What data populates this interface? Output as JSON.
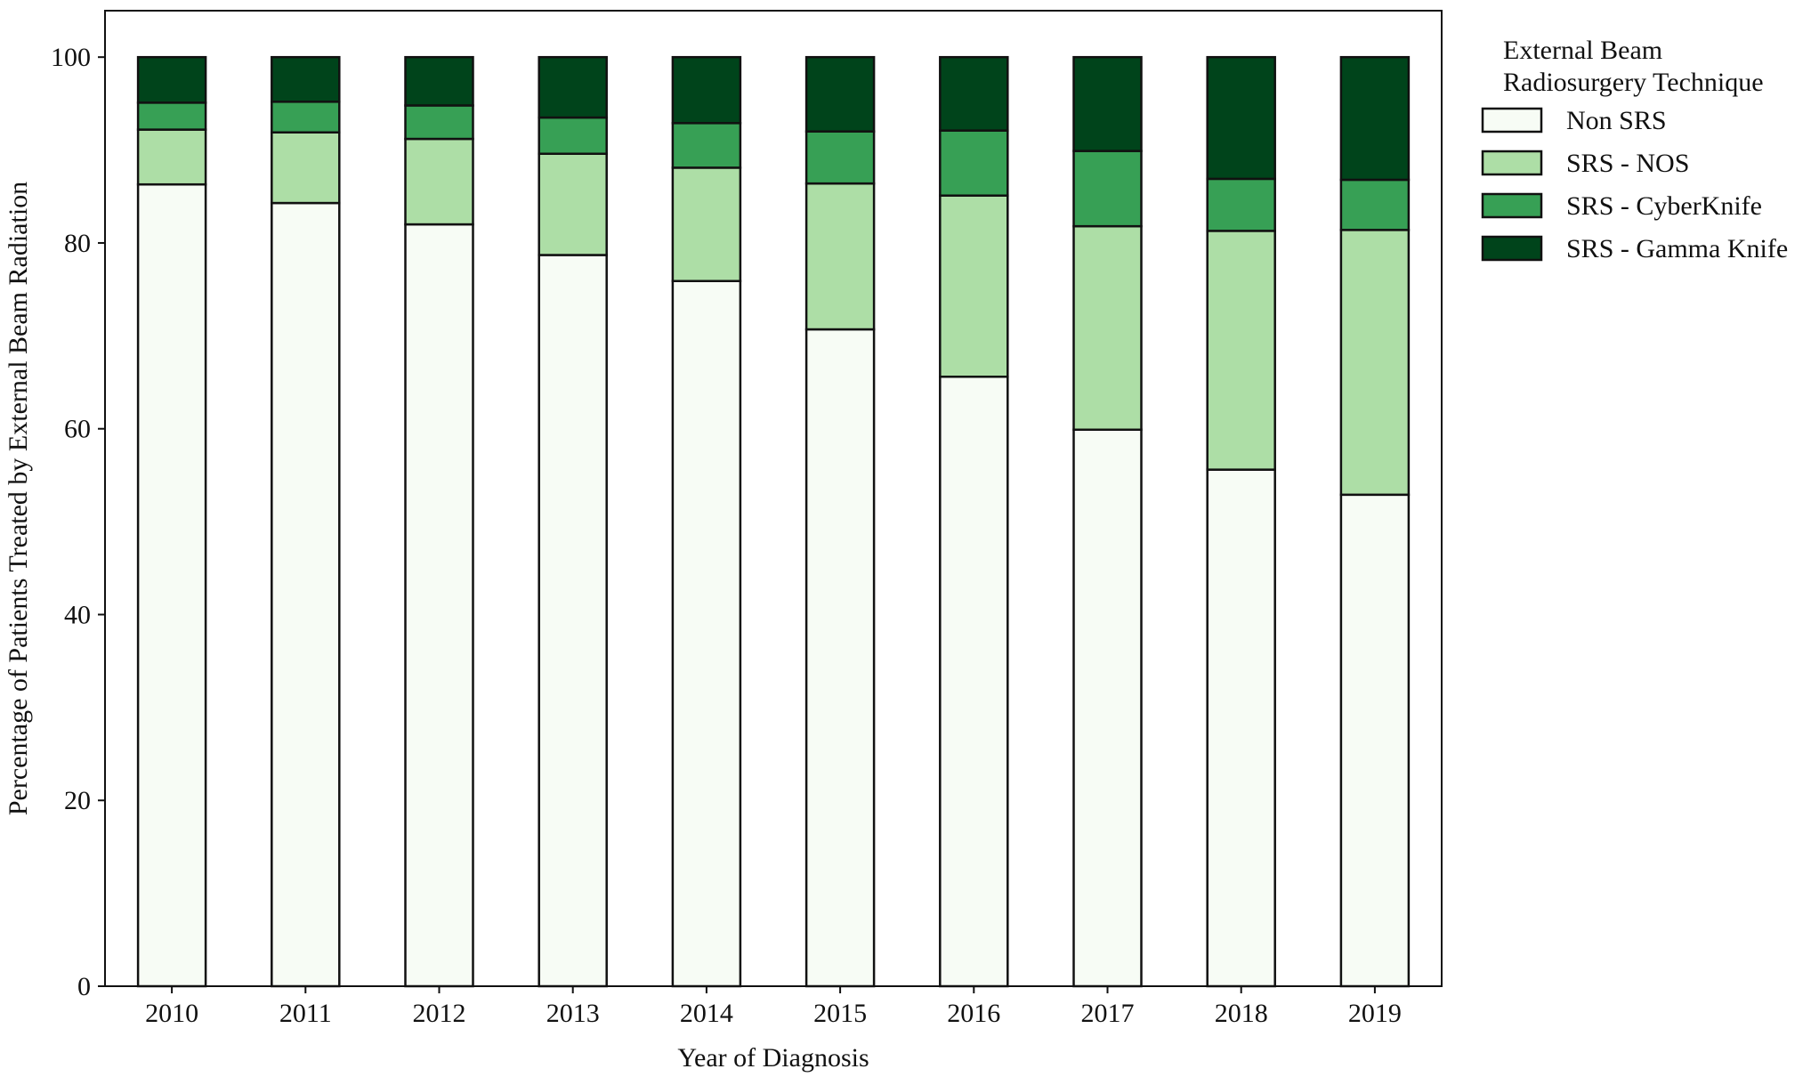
{
  "chart_data": {
    "type": "bar",
    "stacked": true,
    "title": "",
    "xlabel": "Year of Diagnosis",
    "ylabel": "Percentage of Patients Treated by External Beam Radiation",
    "categories": [
      "2010",
      "2011",
      "2012",
      "2013",
      "2014",
      "2015",
      "2016",
      "2017",
      "2018",
      "2019"
    ],
    "ylim": [
      0,
      105
    ],
    "yticks": [
      0,
      20,
      40,
      60,
      80,
      100
    ],
    "grid": false,
    "legend": {
      "title_lines": [
        "External Beam",
        "Radiosurgery Technique"
      ],
      "placement": "outside-right-top"
    },
    "series": [
      {
        "name": "Non SRS",
        "color": "#f7fcf5",
        "values": [
          86.3,
          84.3,
          82.0,
          78.7,
          75.9,
          70.7,
          65.6,
          59.9,
          55.6,
          52.9
        ]
      },
      {
        "name": "SRS - NOS",
        "color": "#addea6",
        "values": [
          5.9,
          7.6,
          9.2,
          10.9,
          12.2,
          15.7,
          19.5,
          21.9,
          25.7,
          28.5
        ]
      },
      {
        "name": "SRS - CyberKnife",
        "color": "#37a055",
        "values": [
          2.9,
          3.3,
          3.6,
          3.9,
          4.8,
          5.6,
          7.0,
          8.1,
          5.6,
          5.4
        ]
      },
      {
        "name": "SRS - Gamma Knife",
        "color": "#00441b",
        "values": [
          4.9,
          4.8,
          5.2,
          6.5,
          7.1,
          8.0,
          7.9,
          10.1,
          13.1,
          13.2
        ]
      }
    ]
  }
}
